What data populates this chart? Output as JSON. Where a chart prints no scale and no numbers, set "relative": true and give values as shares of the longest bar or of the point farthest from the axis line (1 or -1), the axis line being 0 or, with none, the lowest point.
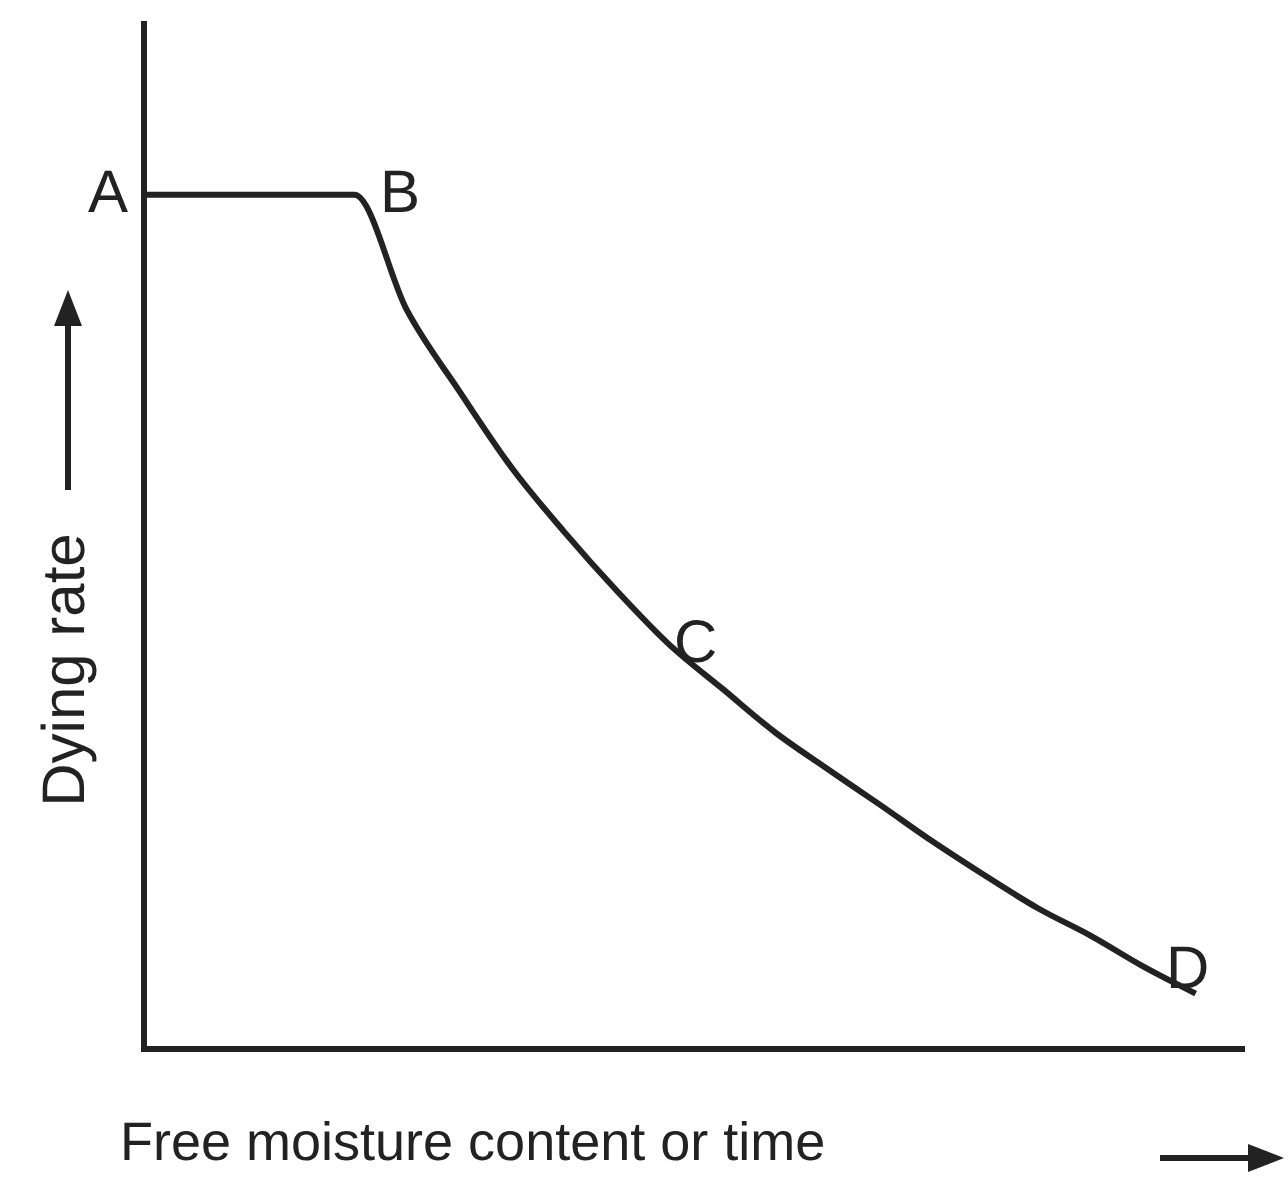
{
  "chart_data": {
    "type": "line",
    "relative": true,
    "xlabel": "Free moisture content or time",
    "ylabel": "Dying rate",
    "categories": [
      null,
      null,
      null,
      null,
      null,
      null,
      null,
      null,
      null,
      null,
      null,
      null,
      null,
      null,
      null,
      null,
      null,
      null,
      null,
      null,
      null
    ],
    "series": [
      {
        "color": "#222222",
        "values": [
          1,
          1,
          1,
          1,
          1,
          0.865,
          0.77,
          0.68,
          0.605,
          0.536,
          0.473,
          0.422,
          0.371,
          0.328,
          0.286,
          0.243,
          0.203,
          0.165,
          0.133,
          0.097,
          0.065
        ]
      }
    ],
    "annotations": [
      "A",
      "B",
      "C",
      "D"
    ],
    "grid": false,
    "legend": false,
    "marker": "none",
    "line_style": "solid"
  }
}
